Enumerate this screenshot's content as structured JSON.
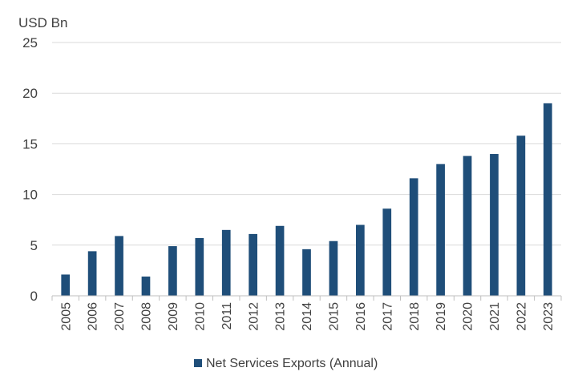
{
  "chart_data": {
    "type": "bar",
    "title": "",
    "ylabel": "USD Bn",
    "xlabel": "",
    "ylim": [
      0,
      25
    ],
    "yticks": [
      0,
      5,
      10,
      15,
      20,
      25
    ],
    "grid": true,
    "legend_position": "bottom",
    "categories": [
      "2005",
      "2006",
      "2007",
      "2008",
      "2009",
      "2010",
      "2011",
      "2012",
      "2013",
      "2014",
      "2015",
      "2016",
      "2017",
      "2018",
      "2019",
      "2020",
      "2021",
      "2022",
      "2023"
    ],
    "series": [
      {
        "name": "Net Services Exports (Annual)",
        "color": "#1F4E79",
        "values": [
          2.1,
          4.4,
          5.9,
          1.9,
          4.9,
          5.7,
          6.5,
          6.1,
          6.9,
          4.6,
          5.4,
          7.0,
          8.6,
          11.6,
          13.0,
          13.8,
          14.0,
          15.8,
          19.0
        ]
      }
    ],
    "colors": {
      "grid": "#d9d9d9",
      "axis": "#bfbfbf",
      "text": "#404040"
    }
  }
}
